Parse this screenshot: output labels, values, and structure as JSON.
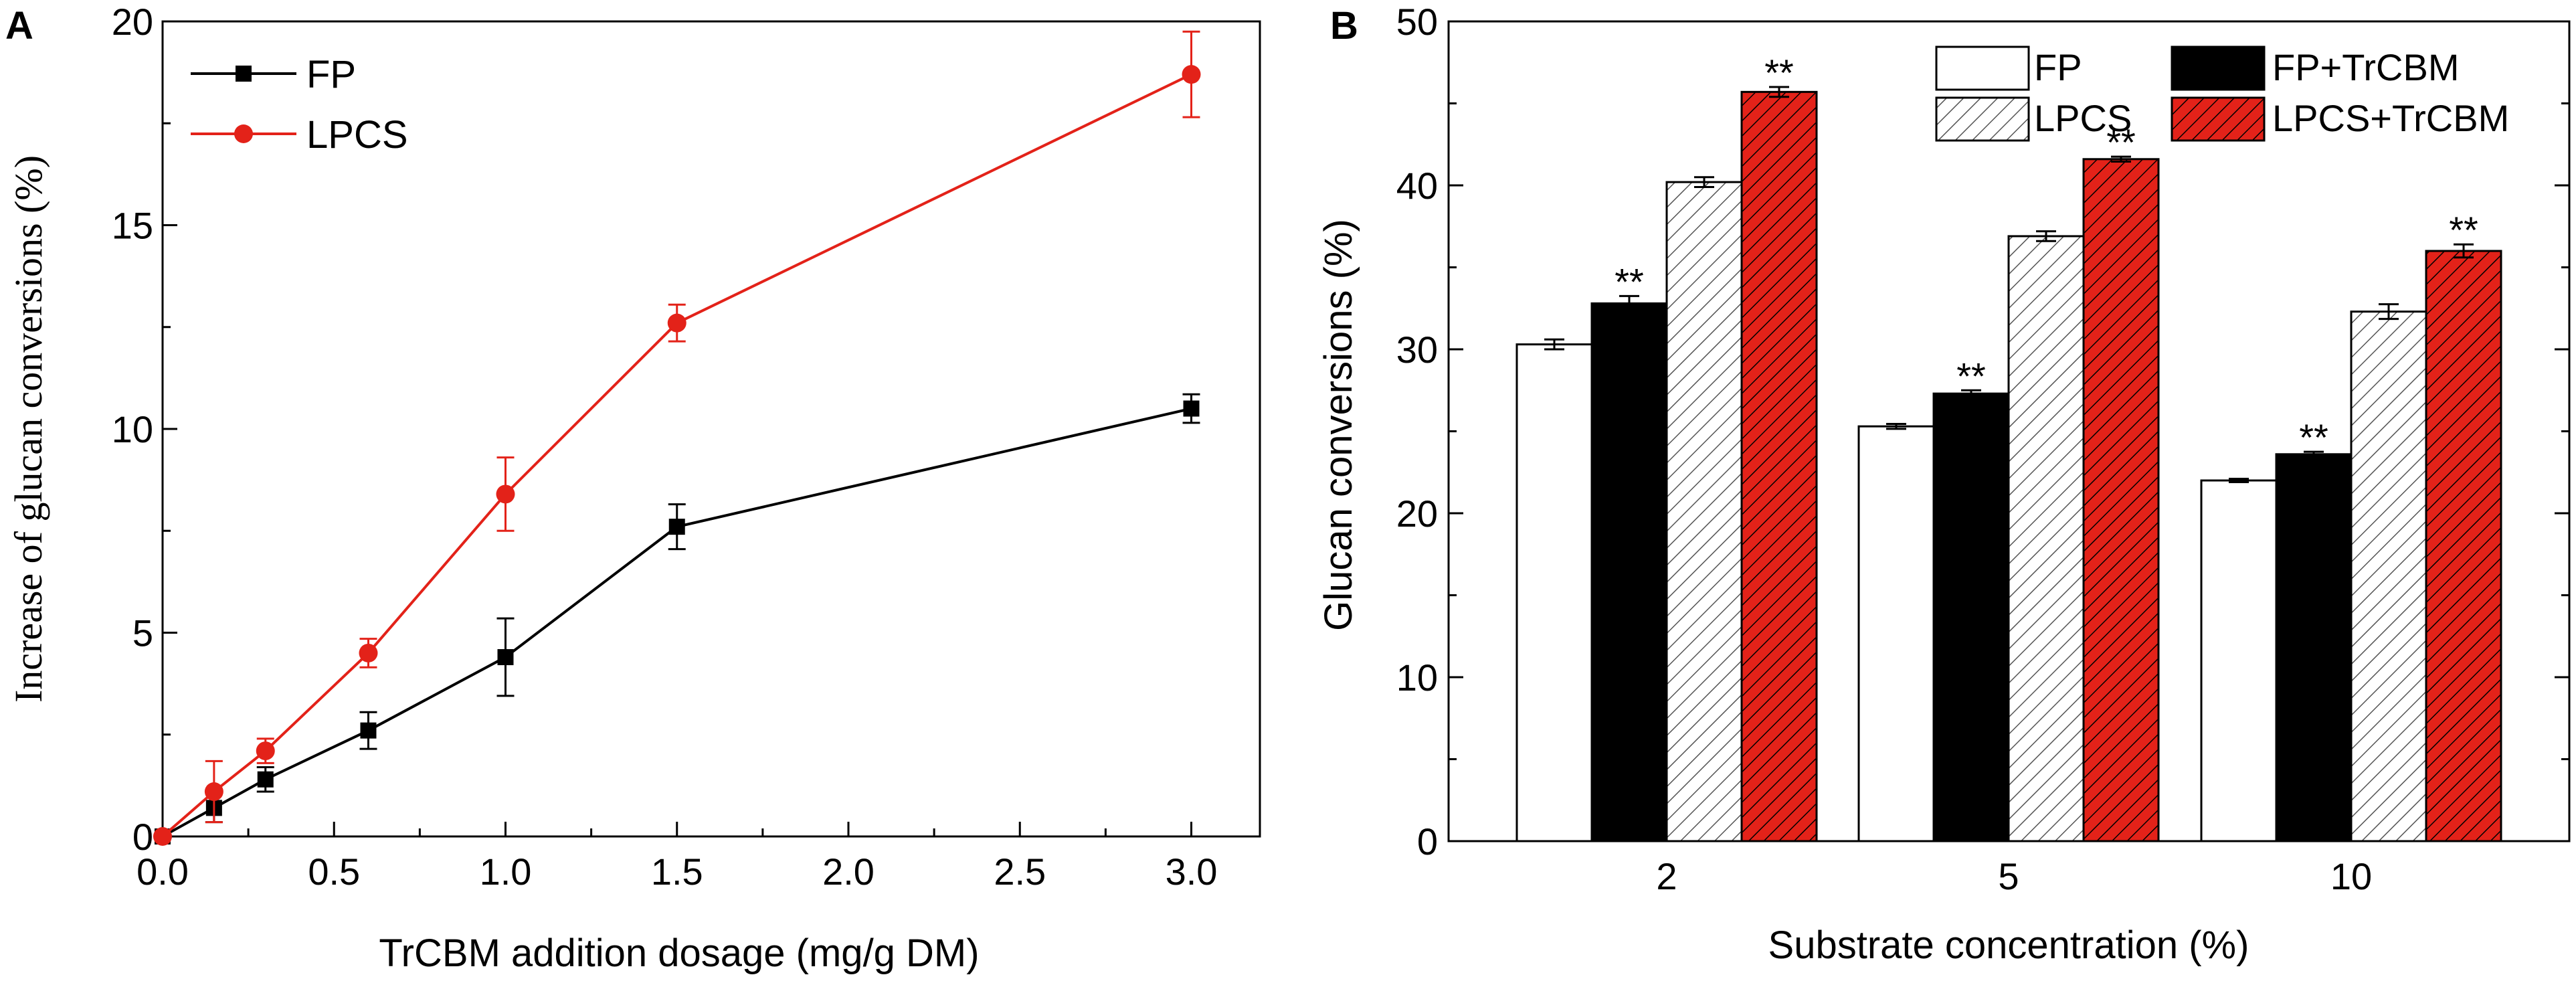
{
  "panels": {
    "a": {
      "letter": "A"
    },
    "b": {
      "letter": "B"
    }
  },
  "colors": {
    "fp": "#000000",
    "lpcs": "#e32219",
    "hatch_red": "#e32219",
    "axis": "#000000"
  },
  "chart_data": [
    {
      "type": "line",
      "title": "",
      "xlabel": "TrCBM addition dosage (mg/g DM)",
      "ylabel": "Increase of glucan conversions (%)",
      "xlim": [
        0,
        3.2
      ],
      "ylim": [
        0,
        20
      ],
      "xticks": [
        0.0,
        0.5,
        1.0,
        1.5,
        2.0,
        2.5,
        3.0
      ],
      "xtick_labels": [
        "0.0",
        "0.5",
        "1.0",
        "1.5",
        "2.0",
        "2.5",
        "3.0"
      ],
      "yticks": [
        0,
        5,
        10,
        15,
        20
      ],
      "ytick_labels": [
        "0",
        "5",
        "10",
        "15",
        "20"
      ],
      "legend_position": "top-left",
      "series": [
        {
          "name": "FP",
          "marker": "square",
          "color": "#000000",
          "x": [
            0,
            0.15,
            0.3,
            0.6,
            1.0,
            1.5,
            3.0
          ],
          "y": [
            0,
            0.7,
            1.4,
            2.6,
            4.4,
            7.6,
            10.5
          ],
          "err": [
            0,
            0.35,
            0.3,
            0.45,
            0.95,
            0.55,
            0.35
          ]
        },
        {
          "name": "LPCS",
          "marker": "circle",
          "color": "#e32219",
          "x": [
            0,
            0.15,
            0.3,
            0.6,
            1.0,
            1.5,
            3.0
          ],
          "y": [
            0,
            1.1,
            2.1,
            4.5,
            8.4,
            12.6,
            18.7
          ],
          "err": [
            0,
            0.75,
            0.3,
            0.35,
            0.9,
            0.45,
            1.05
          ]
        }
      ]
    },
    {
      "type": "bar",
      "title": "",
      "xlabel": "Substrate concentration (%)",
      "ylabel": "Glucan conversions (%)",
      "ylim": [
        0,
        50
      ],
      "yticks": [
        0,
        10,
        20,
        30,
        40,
        50
      ],
      "ytick_labels": [
        "0",
        "10",
        "20",
        "30",
        "40",
        "50"
      ],
      "categories": [
        "2",
        "5",
        "10"
      ],
      "legend_position": "top-right",
      "series": [
        {
          "name": "FP",
          "pattern": "white",
          "values": [
            30.3,
            25.3,
            22.0
          ],
          "err": [
            0.3,
            0.15,
            0.1
          ],
          "annotations": [
            "",
            "",
            ""
          ]
        },
        {
          "name": "FP+TrCBM",
          "pattern": "black",
          "values": [
            32.8,
            27.3,
            23.6
          ],
          "err": [
            0.45,
            0.2,
            0.15
          ],
          "annotations": [
            "**",
            "**",
            "**"
          ]
        },
        {
          "name": "LPCS",
          "pattern": "hatch-gray",
          "values": [
            40.2,
            36.9,
            32.3
          ],
          "err": [
            0.3,
            0.3,
            0.45
          ],
          "annotations": [
            "",
            "",
            ""
          ]
        },
        {
          "name": "LPCS+TrCBM",
          "pattern": "hatch-red",
          "values": [
            45.7,
            41.6,
            36.0
          ],
          "err": [
            0.3,
            0.15,
            0.4
          ],
          "annotations": [
            "**",
            "**",
            "**"
          ]
        }
      ]
    }
  ]
}
